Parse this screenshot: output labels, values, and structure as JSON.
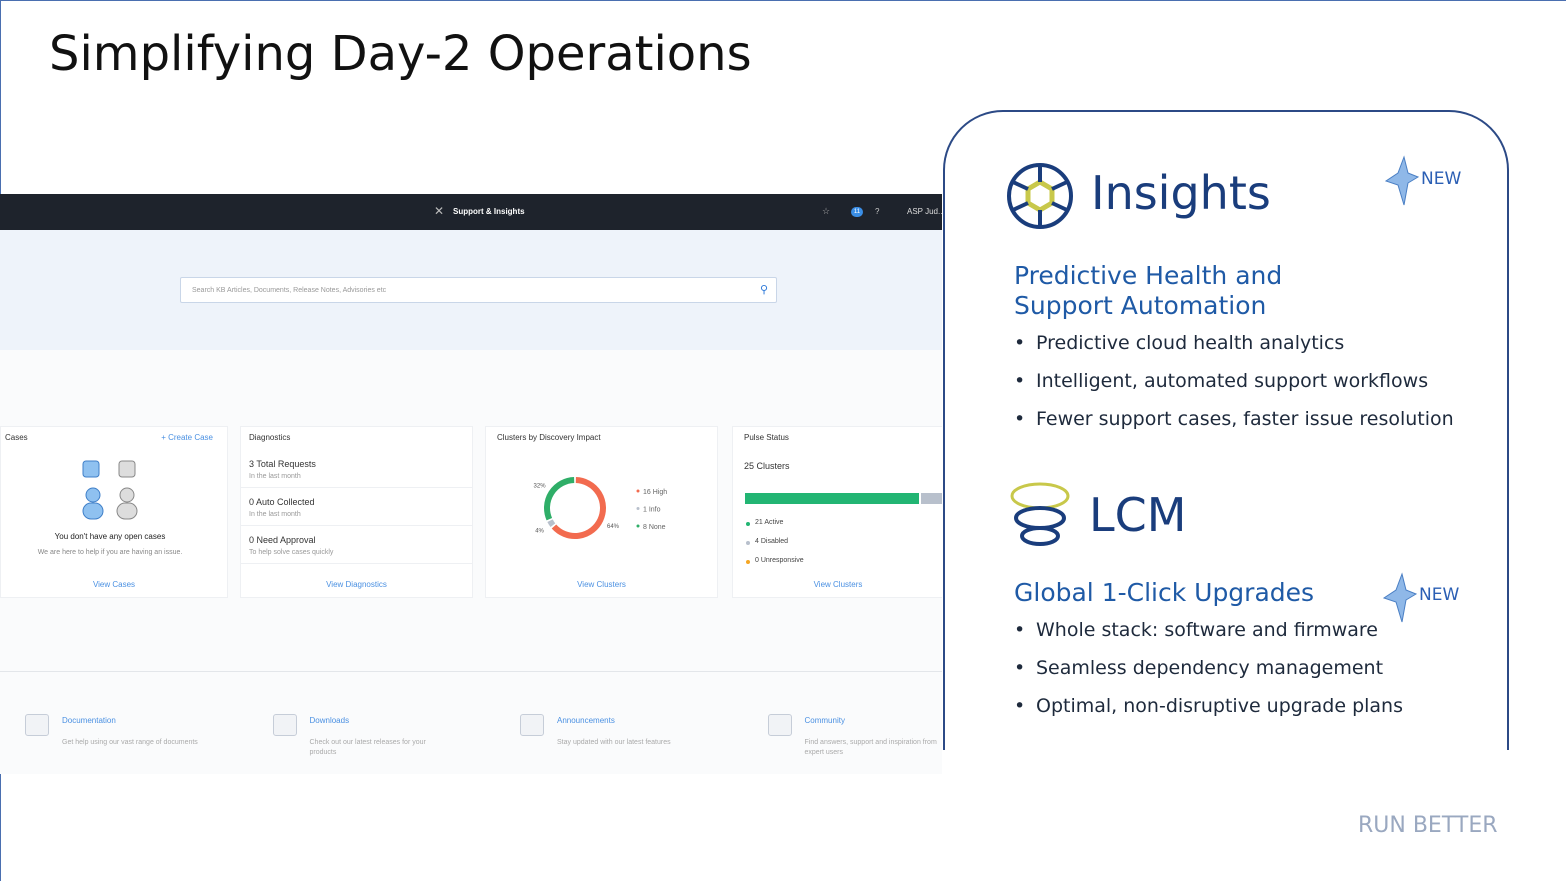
{
  "title": "Simplifying Day-2 Operations",
  "footer": "RUN BETTER",
  "screenshot": {
    "navbar": {
      "brand": "Support & Insights",
      "badge": "11",
      "help": "?",
      "user": "ASP Jud..."
    },
    "search_placeholder": "Search KB Articles, Documents, Release Notes, Advisories etc",
    "cases": {
      "title": "Cases",
      "action": "+ Create Case",
      "message": "You don't have any open cases",
      "sub": "We are here to help if you are having an issue.",
      "link": "View Cases"
    },
    "diagnostics": {
      "title": "Diagnostics",
      "items": [
        {
          "label": "3 Total Requests",
          "sub": "In the last month"
        },
        {
          "label": "0 Auto Collected",
          "sub": "In the last month"
        },
        {
          "label": "0 Need Approval",
          "sub": "To help solve cases quickly"
        }
      ],
      "link": "View Diagnostics"
    },
    "clusters": {
      "title": "Clusters by Discovery Impact",
      "segments": [
        {
          "value": 64,
          "label": "64%",
          "color": "#f26b4f"
        },
        {
          "value": 4,
          "label": "4%",
          "color": "#b8c0cc"
        },
        {
          "value": 32,
          "label": "32%",
          "color": "#2fae68"
        }
      ],
      "legend": [
        "16 High",
        "1 Info",
        "8 None"
      ],
      "link": "View Clusters"
    },
    "pulse": {
      "title": "Pulse Status",
      "count": "25 Clusters",
      "legend": [
        "21 Active",
        "4 Disabled",
        "0 Unresponsive"
      ],
      "link": "View Clusters"
    },
    "resources": [
      {
        "title": "Documentation",
        "text": "Get help using our vast range of documents"
      },
      {
        "title": "Downloads",
        "text": "Check out our latest releases for your products"
      },
      {
        "title": "Announcements",
        "text": "Stay updated with our latest features"
      },
      {
        "title": "Community",
        "text": "Find answers, support and inspiration from expert users"
      }
    ]
  },
  "panel": {
    "insights": {
      "name": "Insights",
      "badge": "NEW",
      "heading": "Predictive Health and Support Automation",
      "bullets": [
        "Predictive cloud health analytics",
        "Intelligent, automated support workflows",
        "Fewer support cases, faster issue resolution"
      ]
    },
    "lcm": {
      "name": "LCM",
      "badge": "NEW",
      "heading": "Global 1-Click Upgrades",
      "bullets": [
        "Whole stack: software and firmware",
        "Seamless dependency management",
        "Optimal, non-disruptive upgrade plans"
      ]
    }
  }
}
